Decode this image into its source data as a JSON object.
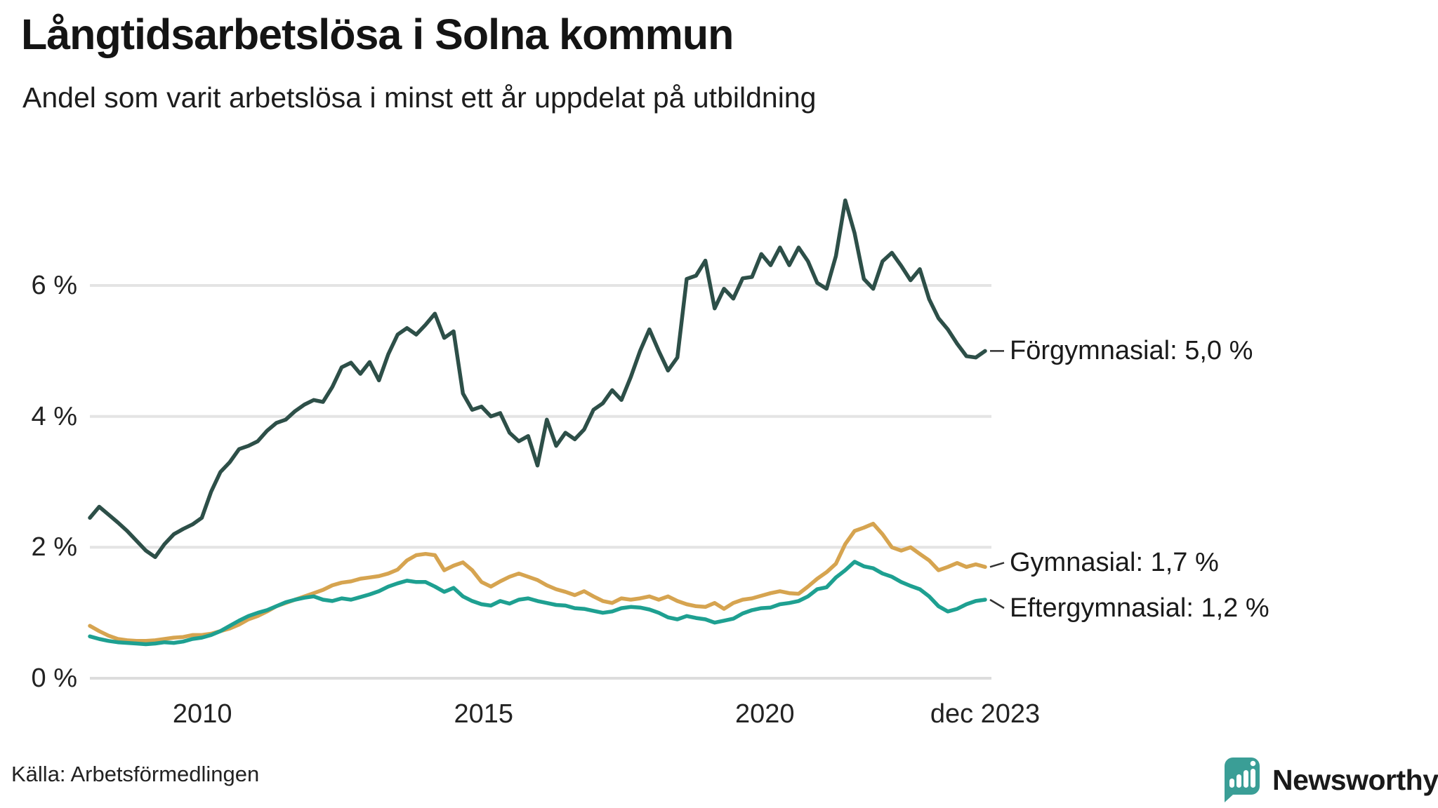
{
  "header": {
    "title": "Långtidsarbetslösa i Solna kommun",
    "subtitle": "Andel som varit arbetslösa i minst ett år uppdelat på utbildning"
  },
  "footer": {
    "source": "Källa: Arbetsförmedlingen",
    "brand": "Newsworthy"
  },
  "colors": {
    "forgymnasial": "#2d4f48",
    "gymnasial": "#d6a450",
    "eftergymnasial": "#1ea091",
    "grid": "#e4e4e4",
    "zero_grid": "#dddddd",
    "connector": "#333333",
    "brand_teal": "#3a9e96",
    "text": "#1a1a1a"
  },
  "chart_data": {
    "type": "line",
    "title": "Långtidsarbetslösa i Solna kommun",
    "subtitle": "Andel som varit arbetslösa i minst ett år uppdelat på utbildning",
    "unit": "%",
    "x_range_years": [
      2008.0,
      2023.9167
    ],
    "x_note": "values sampled every 2 months, Jan 2008 – Dec 2023",
    "ylim": [
      0,
      7.5
    ],
    "grid": "horizontal only",
    "legend_position": "right of line ends, direct labels",
    "yticks": [
      {
        "label": "0 %",
        "value": 0
      },
      {
        "label": "2 %",
        "value": 2
      },
      {
        "label": "4 %",
        "value": 4
      },
      {
        "label": "6 %",
        "value": 6
      }
    ],
    "xticks": [
      {
        "label": "2010",
        "year": 2010.0
      },
      {
        "label": "2015",
        "year": 2015.0
      },
      {
        "label": "2020",
        "year": 2020.0
      },
      {
        "label": "dec 2023",
        "year": 2023.9167
      }
    ],
    "series": [
      {
        "name": "Förgymnasial",
        "label": "Förgymnasial: 5,0 %",
        "last_value": 5.0,
        "color": "#2d4f48",
        "values": [
          2.45,
          2.62,
          2.5,
          2.38,
          2.25,
          2.1,
          1.95,
          1.85,
          2.05,
          2.2,
          2.28,
          2.35,
          2.45,
          2.85,
          3.15,
          3.3,
          3.5,
          3.55,
          3.62,
          3.78,
          3.9,
          3.95,
          4.08,
          4.18,
          4.25,
          4.22,
          4.45,
          4.75,
          4.82,
          4.65,
          4.83,
          4.55,
          4.95,
          5.25,
          5.35,
          5.25,
          5.4,
          5.57,
          5.2,
          5.3,
          4.35,
          4.1,
          4.15,
          4.0,
          4.05,
          3.75,
          3.62,
          3.7,
          3.25,
          3.95,
          3.55,
          3.75,
          3.65,
          3.8,
          4.1,
          4.2,
          4.4,
          4.25,
          4.6,
          5.0,
          5.33,
          5.0,
          4.7,
          4.9,
          6.1,
          6.15,
          6.38,
          5.65,
          5.95,
          5.8,
          6.11,
          6.13,
          6.48,
          6.31,
          6.58,
          6.31,
          6.58,
          6.37,
          6.04,
          5.95,
          6.45,
          7.3,
          6.8,
          6.1,
          5.95,
          6.37,
          6.5,
          6.3,
          6.08,
          6.25,
          5.79,
          5.5,
          5.33,
          5.11,
          4.92,
          4.9,
          5.0
        ]
      },
      {
        "name": "Gymnasial",
        "label": "Gymnasial: 1,7 %",
        "last_value": 1.7,
        "color": "#d6a450",
        "values": [
          0.8,
          0.72,
          0.65,
          0.6,
          0.58,
          0.57,
          0.57,
          0.58,
          0.6,
          0.62,
          0.63,
          0.66,
          0.66,
          0.68,
          0.72,
          0.76,
          0.82,
          0.9,
          0.95,
          1.02,
          1.1,
          1.15,
          1.2,
          1.25,
          1.3,
          1.35,
          1.42,
          1.46,
          1.48,
          1.52,
          1.54,
          1.56,
          1.6,
          1.66,
          1.8,
          1.88,
          1.9,
          1.88,
          1.65,
          1.72,
          1.77,
          1.65,
          1.47,
          1.4,
          1.48,
          1.55,
          1.6,
          1.55,
          1.5,
          1.42,
          1.36,
          1.32,
          1.27,
          1.33,
          1.25,
          1.18,
          1.15,
          1.22,
          1.2,
          1.22,
          1.25,
          1.2,
          1.25,
          1.18,
          1.13,
          1.1,
          1.09,
          1.15,
          1.06,
          1.15,
          1.2,
          1.22,
          1.26,
          1.3,
          1.33,
          1.3,
          1.29,
          1.4,
          1.52,
          1.62,
          1.75,
          2.05,
          2.25,
          2.3,
          2.36,
          2.2,
          2.0,
          1.95,
          2.0,
          1.9,
          1.8,
          1.65,
          1.7,
          1.76,
          1.7,
          1.74,
          1.7
        ]
      },
      {
        "name": "Eftergymnasial",
        "label": "Eftergymnasial: 1,2 %",
        "last_value": 1.2,
        "color": "#1ea091",
        "values": [
          0.64,
          0.6,
          0.57,
          0.55,
          0.54,
          0.53,
          0.52,
          0.53,
          0.55,
          0.54,
          0.56,
          0.6,
          0.62,
          0.66,
          0.72,
          0.8,
          0.88,
          0.95,
          1.0,
          1.04,
          1.1,
          1.16,
          1.2,
          1.23,
          1.25,
          1.2,
          1.18,
          1.22,
          1.2,
          1.24,
          1.28,
          1.33,
          1.4,
          1.45,
          1.49,
          1.47,
          1.47,
          1.4,
          1.32,
          1.38,
          1.25,
          1.18,
          1.13,
          1.11,
          1.18,
          1.14,
          1.2,
          1.22,
          1.18,
          1.15,
          1.12,
          1.11,
          1.07,
          1.06,
          1.03,
          1.0,
          1.02,
          1.07,
          1.09,
          1.08,
          1.05,
          1.0,
          0.93,
          0.9,
          0.95,
          0.92,
          0.9,
          0.85,
          0.88,
          0.91,
          0.99,
          1.04,
          1.07,
          1.08,
          1.13,
          1.15,
          1.18,
          1.25,
          1.36,
          1.39,
          1.54,
          1.65,
          1.78,
          1.71,
          1.68,
          1.6,
          1.55,
          1.47,
          1.41,
          1.36,
          1.25,
          1.1,
          1.02,
          1.06,
          1.13,
          1.18,
          1.2
        ]
      }
    ]
  }
}
